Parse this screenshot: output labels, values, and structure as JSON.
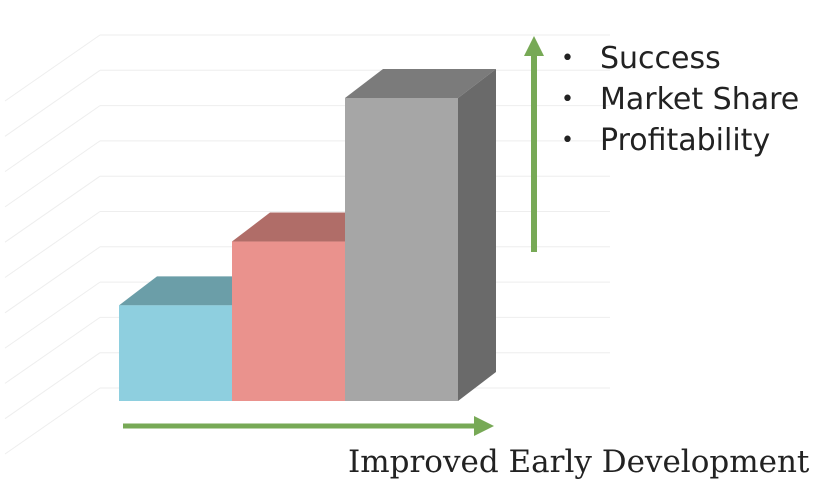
{
  "chart_data": {
    "type": "bar",
    "style": "3d-columns",
    "categories": [
      "",
      "",
      ""
    ],
    "values": [
      3,
      5,
      9.5
    ],
    "ylim": [
      0,
      11
    ],
    "grid": true,
    "gridlines": 11,
    "colors": {
      "bars": [
        {
          "front": "#8ecfdf",
          "top": "#6b9ea8",
          "side": "#5e8c96"
        },
        {
          "front": "#ea928d",
          "top": "#b06d68",
          "side": "#9c5e5a"
        },
        {
          "front": "#a6a6a6",
          "top": "#7b7b7b",
          "side": "#6a6a6a"
        }
      ],
      "arrow": "#77a956",
      "grid": "#eeeeee"
    },
    "xlabel": "Improved Early Development",
    "annotations": {
      "up_arrow": true,
      "right_arrow": true,
      "bullets": [
        "Success",
        "Market Share",
        "Profitability"
      ]
    }
  }
}
